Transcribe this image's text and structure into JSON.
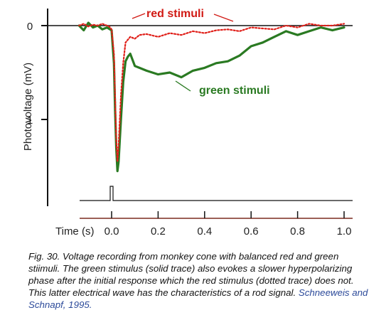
{
  "chart_data": {
    "type": "line",
    "xlabel": "Time (s)",
    "ylabel": "Photovoltage (mV)",
    "xlim": [
      -0.15,
      1.02
    ],
    "ylim": [
      1.55,
      -0.13
    ],
    "x_ticks": [
      0.0,
      0.2,
      0.4,
      0.6,
      0.8,
      1.0
    ],
    "x_tick_labels": [
      "0.0",
      "0.2",
      "0.4",
      "0.6",
      "0.8",
      "1.0"
    ],
    "y_ticks": [
      0,
      1
    ],
    "y_tick_labels": [
      "0",
      "1"
    ],
    "baseline_mV": 0,
    "stimulus_marker": {
      "onset_s": 0.0,
      "offset_s": 0.015
    },
    "series": [
      {
        "name": "red stimuli",
        "style": "dotted",
        "color": "#e0201a",
        "x": [
          -0.14,
          -0.12,
          -0.1,
          -0.08,
          -0.06,
          -0.04,
          -0.02,
          -0.01,
          0,
          0.01,
          0.015,
          0.02,
          0.025,
          0.03,
          0.04,
          0.05,
          0.06,
          0.08,
          0.1,
          0.12,
          0.15,
          0.2,
          0.25,
          0.3,
          0.35,
          0.4,
          0.45,
          0.5,
          0.55,
          0.6,
          0.65,
          0.7,
          0.75,
          0.8,
          0.85,
          0.9,
          0.95,
          1.0
        ],
        "y": [
          0.0,
          -0.02,
          0.01,
          -0.01,
          0.0,
          -0.02,
          0.0,
          0.01,
          0.04,
          0.3,
          0.75,
          1.2,
          1.45,
          1.28,
          0.75,
          0.4,
          0.18,
          0.12,
          0.14,
          0.1,
          0.09,
          0.12,
          0.08,
          0.1,
          0.06,
          0.08,
          0.05,
          0.04,
          0.06,
          0.02,
          0.03,
          0.04,
          0.0,
          0.02,
          -0.02,
          0.0,
          0.0,
          -0.02
        ]
      },
      {
        "name": "green stimuli",
        "style": "solid",
        "color": "#2a7a22",
        "x": [
          -0.14,
          -0.12,
          -0.1,
          -0.08,
          -0.06,
          -0.04,
          -0.02,
          0,
          0.01,
          0.015,
          0.02,
          0.025,
          0.03,
          0.04,
          0.05,
          0.06,
          0.07,
          0.08,
          0.1,
          0.12,
          0.15,
          0.2,
          0.25,
          0.3,
          0.35,
          0.4,
          0.45,
          0.5,
          0.55,
          0.6,
          0.65,
          0.7,
          0.75,
          0.8,
          0.85,
          0.9,
          0.95,
          1.0
        ],
        "y": [
          0.0,
          0.05,
          -0.03,
          0.02,
          0.0,
          0.04,
          0.02,
          0.05,
          0.4,
          0.9,
          1.3,
          1.55,
          1.45,
          1.0,
          0.6,
          0.38,
          0.33,
          0.3,
          0.43,
          0.45,
          0.48,
          0.52,
          0.5,
          0.55,
          0.48,
          0.45,
          0.4,
          0.38,
          0.32,
          0.22,
          0.18,
          0.12,
          0.06,
          0.1,
          0.06,
          0.02,
          0.05,
          0.02
        ]
      }
    ]
  },
  "caption": {
    "text": "Fig. 30. Voltage recording from monkey cone with balanced red and green stiimuli. The green stimulus (solid trace) also evokes a slower hyperpolarizing phase after the initial response which the red stimulus  (dotted trace) does not. This latter electrical wave has the characteristics of a rod signal.",
    "citation": "Schneeweis and Schnapf, 1995."
  },
  "colors": {
    "red_trace": "#e0201a",
    "green_trace": "#2a7a22",
    "axis": "#111111",
    "time_axis": "#7a2a1f",
    "citation": "#2c4a9a"
  }
}
